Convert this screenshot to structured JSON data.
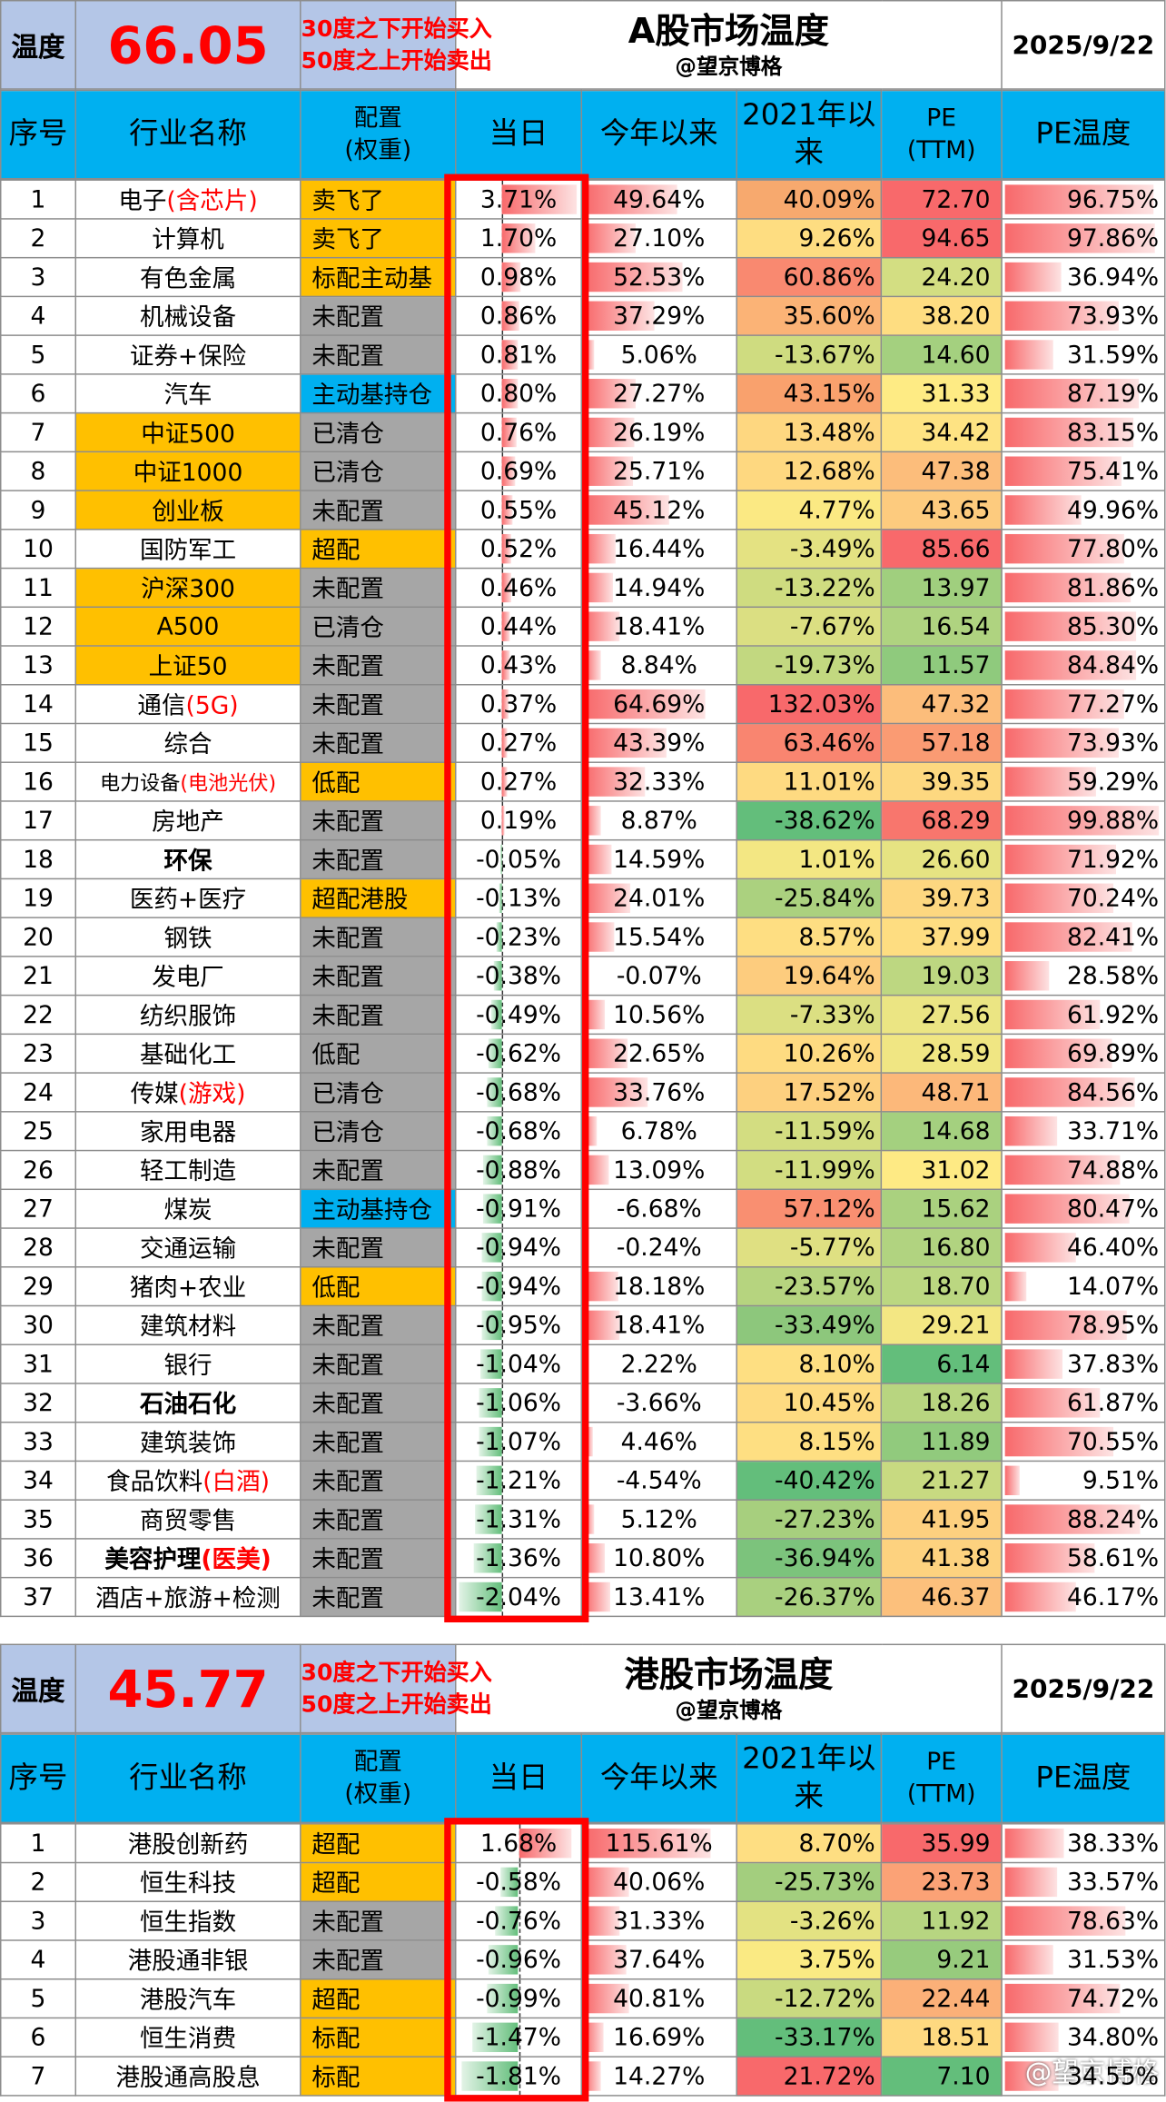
{
  "a_share": {
    "temp_label": "温度",
    "temp_value": "66.05",
    "note_line1": "30度之下开始买入",
    "note_line2": "50度之上开始卖出",
    "title": "A股市场温度",
    "subtitle": "@望京博格",
    "date": "2025/9/22",
    "columns": [
      "序号",
      "行业名称",
      "配置\n(权重)",
      "当日",
      "今年以来",
      "2021年以来",
      "PE\n(TTM)",
      "PE温度"
    ],
    "rows": [
      {
        "no": "1",
        "name": "电子",
        "name_red": "(含芯片)",
        "cfg": "卖飞了",
        "cfg_color": "orange",
        "day": "3.71%",
        "day_val": 3.71,
        "ytd": "49.64%",
        "ytd_val": 49.64,
        "c21": "40.09%",
        "c21_color": "#f7a96e",
        "pe": "72.70",
        "pe_color": "#f8696b",
        "pet": "96.75%",
        "pet_val": 96.75
      },
      {
        "no": "2",
        "name": "计算机",
        "cfg": "卖飞了",
        "cfg_color": "orange",
        "day": "1.70%",
        "day_val": 1.7,
        "ytd": "27.10%",
        "ytd_val": 27.1,
        "c21": "9.26%",
        "c21_color": "#fedd81",
        "pe": "94.65",
        "pe_color": "#f8696b",
        "pet": "97.86%",
        "pet_val": 97.86
      },
      {
        "no": "3",
        "name": "有色金属",
        "cfg": "标配主动基",
        "cfg_color": "orange",
        "day": "0.98%",
        "day_val": 0.98,
        "ytd": "52.53%",
        "ytd_val": 52.53,
        "c21": "60.86%",
        "c21_color": "#f98970",
        "pe": "24.20",
        "pe_color": "#d3de82",
        "pet": "36.94%",
        "pet_val": 36.94
      },
      {
        "no": "4",
        "name": "机械设备",
        "cfg": "未配置",
        "cfg_color": "gray",
        "day": "0.86%",
        "day_val": 0.86,
        "ytd": "37.29%",
        "ytd_val": 37.29,
        "c21": "35.60%",
        "c21_color": "#fbb376",
        "pe": "38.20",
        "pe_color": "#fedd81",
        "pet": "73.93%",
        "pet_val": 73.93
      },
      {
        "no": "5",
        "name": "证券+保险",
        "cfg": "未配置",
        "cfg_color": "gray",
        "day": "0.81%",
        "day_val": 0.81,
        "ytd": "5.06%",
        "ytd_val": 5.06,
        "c21": "-13.67%",
        "c21_color": "#cfdc80",
        "pe": "14.60",
        "pe_color": "#a4d07f",
        "pet": "31.59%",
        "pet_val": 31.59
      },
      {
        "no": "6",
        "name": "汽车",
        "cfg": "主动基持仓",
        "cfg_color": "blue",
        "day": "0.80%",
        "day_val": 0.8,
        "ytd": "27.27%",
        "ytd_val": 27.27,
        "c21": "43.15%",
        "c21_color": "#f9a16d",
        "pe": "31.33",
        "pe_color": "#feeb84",
        "pet": "87.19%",
        "pet_val": 87.19
      },
      {
        "no": "7",
        "name": "中证500",
        "name_hl": true,
        "cfg": "已清仓",
        "cfg_color": "gray",
        "day": "0.76%",
        "day_val": 0.76,
        "ytd": "26.19%",
        "ytd_val": 26.19,
        "c21": "13.48%",
        "c21_color": "#fed780",
        "pe": "34.42",
        "pe_color": "#fee383",
        "pet": "83.15%",
        "pet_val": 83.15
      },
      {
        "no": "8",
        "name": "中证1000",
        "name_hl": true,
        "cfg": "已清仓",
        "cfg_color": "gray",
        "day": "0.69%",
        "day_val": 0.69,
        "ytd": "25.71%",
        "ytd_val": 25.71,
        "c21": "12.68%",
        "c21_color": "#fed880",
        "pe": "47.38",
        "pe_color": "#fcbd7b",
        "pet": "75.41%",
        "pet_val": 75.41
      },
      {
        "no": "9",
        "name": "创业板",
        "name_hl": true,
        "cfg": "未配置",
        "cfg_color": "gray",
        "day": "0.55%",
        "day_val": 0.55,
        "ytd": "45.12%",
        "ytd_val": 45.12,
        "c21": "4.77%",
        "c21_color": "#fbe983",
        "pe": "43.65",
        "pe_color": "#fdcb7e",
        "pet": "49.96%",
        "pet_val": 49.96
      },
      {
        "no": "10",
        "name": "国防军工",
        "cfg": "超配",
        "cfg_color": "orange",
        "day": "0.52%",
        "day_val": 0.52,
        "ytd": "16.44%",
        "ytd_val": 16.44,
        "c21": "-3.49%",
        "c21_color": "#e4e282",
        "pe": "85.66",
        "pe_color": "#f8696b",
        "pet": "77.80%",
        "pet_val": 77.8
      },
      {
        "no": "11",
        "name": "沪深300",
        "name_hl": true,
        "cfg": "未配置",
        "cfg_color": "gray",
        "day": "0.46%",
        "day_val": 0.46,
        "ytd": "14.94%",
        "ytd_val": 14.94,
        "c21": "-13.22%",
        "c21_color": "#cfdc80",
        "pe": "13.97",
        "pe_color": "#a0cf7e",
        "pet": "81.86%",
        "pet_val": 81.86
      },
      {
        "no": "12",
        "name": "A500",
        "name_hl": true,
        "cfg": "已清仓",
        "cfg_color": "gray",
        "day": "0.44%",
        "day_val": 0.44,
        "ytd": "18.41%",
        "ytd_val": 18.41,
        "c21": "-7.67%",
        "c21_color": "#dbdf82",
        "pe": "16.54",
        "pe_color": "#afd380",
        "pet": "85.30%",
        "pet_val": 85.3
      },
      {
        "no": "13",
        "name": "上证50",
        "name_hl": true,
        "cfg": "未配置",
        "cfg_color": "gray",
        "day": "0.43%",
        "day_val": 0.43,
        "ytd": "8.84%",
        "ytd_val": 8.84,
        "c21": "-19.73%",
        "c21_color": "#c2d880",
        "pe": "11.57",
        "pe_color": "#8fca7d",
        "pet": "84.84%",
        "pet_val": 84.84
      },
      {
        "no": "14",
        "name": "通信",
        "name_red": "(5G)",
        "cfg": "未配置",
        "cfg_color": "gray",
        "day": "0.37%",
        "day_val": 0.37,
        "ytd": "64.69%",
        "ytd_val": 64.69,
        "c21": "132.03%",
        "c21_color": "#f8696b",
        "pe": "47.32",
        "pe_color": "#fcbd7b",
        "pet": "77.27%",
        "pet_val": 77.27
      },
      {
        "no": "15",
        "name": "综合",
        "cfg": "未配置",
        "cfg_color": "gray",
        "day": "0.27%",
        "day_val": 0.27,
        "ytd": "43.39%",
        "ytd_val": 43.39,
        "c21": "63.46%",
        "c21_color": "#f98570",
        "pe": "57.18",
        "pe_color": "#fa9b73",
        "pet": "73.93%",
        "pet_val": 73.93
      },
      {
        "no": "16",
        "name": "电力设备",
        "name_red": "(电池光伏)",
        "name_small": true,
        "cfg": "低配",
        "cfg_color": "orange",
        "day": "0.27%",
        "day_val": 0.27,
        "ytd": "32.33%",
        "ytd_val": 32.33,
        "c21": "11.01%",
        "c21_color": "#feda81",
        "pe": "39.35",
        "pe_color": "#fdd880",
        "pet": "59.29%",
        "pet_val": 59.29
      },
      {
        "no": "17",
        "name": "房地产",
        "cfg": "未配置",
        "cfg_color": "gray",
        "day": "0.19%",
        "day_val": 0.19,
        "ytd": "8.87%",
        "ytd_val": 8.87,
        "c21": "-38.62%",
        "c21_color": "#63be7b",
        "pe": "68.29",
        "pe_color": "#f8766d",
        "pet": "99.88%",
        "pet_val": 99.88
      },
      {
        "no": "18",
        "name": "环保",
        "name_bold": true,
        "cfg": "未配置",
        "cfg_color": "gray",
        "day": "-0.05%",
        "day_val": -0.05,
        "ytd": "14.59%",
        "ytd_val": 14.59,
        "c21": "1.01%",
        "c21_color": "#f3e783",
        "pe": "26.60",
        "pe_color": "#e6e382",
        "pet": "71.92%",
        "pet_val": 71.92
      },
      {
        "no": "19",
        "name": "医药+医疗",
        "cfg": "超配港股",
        "cfg_color": "orange",
        "day": "-0.13%",
        "day_val": -0.13,
        "ytd": "24.01%",
        "ytd_val": 24.01,
        "c21": "-25.84%",
        "c21_color": "#abd17f",
        "pe": "39.73",
        "pe_color": "#fdd780",
        "pet": "70.24%",
        "pet_val": 70.24
      },
      {
        "no": "20",
        "name": "钢铁",
        "cfg": "未配置",
        "cfg_color": "gray",
        "day": "-0.23%",
        "day_val": -0.23,
        "ytd": "15.54%",
        "ytd_val": 15.54,
        "c21": "8.57%",
        "c21_color": "#fede82",
        "pe": "37.99",
        "pe_color": "#fedd81",
        "pet": "82.41%",
        "pet_val": 82.41
      },
      {
        "no": "21",
        "name": "发电厂",
        "cfg": "未配置",
        "cfg_color": "gray",
        "day": "-0.38%",
        "day_val": -0.38,
        "ytd": "-0.07%",
        "ytd_val": -0.07,
        "c21": "19.64%",
        "c21_color": "#fdcc7e",
        "pe": "19.03",
        "pe_color": "#bdd781",
        "pet": "28.58%",
        "pet_val": 28.58
      },
      {
        "no": "22",
        "name": "纺织服饰",
        "cfg": "未配置",
        "cfg_color": "gray",
        "day": "-0.49%",
        "day_val": -0.49,
        "ytd": "10.56%",
        "ytd_val": 10.56,
        "c21": "-7.33%",
        "c21_color": "#dbdf82",
        "pe": "27.56",
        "pe_color": "#ebe583",
        "pet": "61.92%",
        "pet_val": 61.92
      },
      {
        "no": "23",
        "name": "基础化工",
        "cfg": "低配",
        "cfg_color": "gray",
        "day": "-0.62%",
        "day_val": -0.62,
        "ytd": "22.65%",
        "ytd_val": 22.65,
        "c21": "10.26%",
        "c21_color": "#fedb81",
        "pe": "28.59",
        "pe_color": "#f0e683",
        "pet": "69.89%",
        "pet_val": 69.89
      },
      {
        "no": "24",
        "name": "传媒",
        "name_red": "(游戏)",
        "cfg": "已清仓",
        "cfg_color": "gray",
        "day": "-0.68%",
        "day_val": -0.68,
        "ytd": "33.76%",
        "ytd_val": 33.76,
        "c21": "17.52%",
        "c21_color": "#fdd07f",
        "pe": "48.71",
        "pe_color": "#fcb87a",
        "pet": "84.56%",
        "pet_val": 84.56
      },
      {
        "no": "25",
        "name": "家用电器",
        "cfg": "已清仓",
        "cfg_color": "gray",
        "day": "-0.68%",
        "day_val": -0.68,
        "ytd": "6.78%",
        "ytd_val": 6.78,
        "c21": "-11.59%",
        "c21_color": "#d3dd81",
        "pe": "14.68",
        "pe_color": "#a4d07f",
        "pet": "33.71%",
        "pet_val": 33.71
      },
      {
        "no": "26",
        "name": "轻工制造",
        "cfg": "未配置",
        "cfg_color": "gray",
        "day": "-0.88%",
        "day_val": -0.88,
        "ytd": "13.09%",
        "ytd_val": 13.09,
        "c21": "-11.99%",
        "c21_color": "#d2dd81",
        "pe": "31.02",
        "pe_color": "#feea84",
        "pet": "74.88%",
        "pet_val": 74.88
      },
      {
        "no": "27",
        "name": "煤炭",
        "cfg": "主动基持仓",
        "cfg_color": "blue",
        "day": "-0.91%",
        "day_val": -0.91,
        "ytd": "-6.68%",
        "ytd_val": -6.68,
        "c21": "57.12%",
        "c21_color": "#f98f71",
        "pe": "15.62",
        "pe_color": "#aad17f",
        "pet": "80.47%",
        "pet_val": 80.47
      },
      {
        "no": "28",
        "name": "交通运输",
        "cfg": "未配置",
        "cfg_color": "gray",
        "day": "-0.94%",
        "day_val": -0.94,
        "ytd": "-0.24%",
        "ytd_val": -0.24,
        "c21": "-5.77%",
        "c21_color": "#dfe082",
        "pe": "16.80",
        "pe_color": "#b1d380",
        "pet": "46.40%",
        "pet_val": 46.4
      },
      {
        "no": "29",
        "name": "猪肉+农业",
        "cfg": "低配",
        "cfg_color": "orange",
        "day": "-0.94%",
        "day_val": -0.94,
        "ytd": "18.18%",
        "ytd_val": 18.18,
        "c21": "-23.57%",
        "c21_color": "#b6d47f",
        "pe": "18.70",
        "pe_color": "#bbd781",
        "pet": "14.07%",
        "pet_val": 14.07
      },
      {
        "no": "30",
        "name": "建筑材料",
        "cfg": "未配置",
        "cfg_color": "gray",
        "day": "-0.95%",
        "day_val": -0.95,
        "ytd": "18.41%",
        "ytd_val": 18.41,
        "c21": "-33.49%",
        "c21_color": "#8dc77c",
        "pe": "29.21",
        "pe_color": "#f3e783",
        "pet": "78.95%",
        "pet_val": 78.95
      },
      {
        "no": "31",
        "name": "银行",
        "cfg": "未配置",
        "cfg_color": "gray",
        "day": "-1.04%",
        "day_val": -1.04,
        "ytd": "2.22%",
        "ytd_val": 2.22,
        "c21": "8.10%",
        "c21_color": "#fedf82",
        "pe": "6.14",
        "pe_color": "#63be7b",
        "pet": "37.83%",
        "pet_val": 37.83
      },
      {
        "no": "32",
        "name": "石油石化",
        "name_bold": true,
        "cfg": "未配置",
        "cfg_color": "gray",
        "day": "-1.06%",
        "day_val": -1.06,
        "ytd": "-3.66%",
        "ytd_val": -3.66,
        "c21": "10.45%",
        "c21_color": "#fedb81",
        "pe": "18.26",
        "pe_color": "#b8d580",
        "pet": "61.87%",
        "pet_val": 61.87
      },
      {
        "no": "33",
        "name": "建筑装饰",
        "cfg": "未配置",
        "cfg_color": "gray",
        "day": "-1.07%",
        "day_val": -1.07,
        "ytd": "4.46%",
        "ytd_val": 4.46,
        "c21": "8.15%",
        "c21_color": "#fedf82",
        "pe": "11.89",
        "pe_color": "#91ca7d",
        "pet": "70.55%",
        "pet_val": 70.55
      },
      {
        "no": "34",
        "name": "食品饮料",
        "name_red": "(白酒)",
        "cfg": "未配置",
        "cfg_color": "gray",
        "day": "-1.21%",
        "day_val": -1.21,
        "ytd": "-4.54%",
        "ytd_val": -4.54,
        "c21": "-40.42%",
        "c21_color": "#63be7b",
        "pe": "21.27",
        "pe_color": "#c8da81",
        "pet": "9.51%",
        "pet_val": 9.51
      },
      {
        "no": "35",
        "name": "商贸零售",
        "cfg": "未配置",
        "cfg_color": "gray",
        "day": "-1.31%",
        "day_val": -1.31,
        "ytd": "5.12%",
        "ytd_val": 5.12,
        "c21": "-27.23%",
        "c21_color": "#a7cf7e",
        "pe": "41.95",
        "pe_color": "#fdd07f",
        "pet": "88.24%",
        "pet_val": 88.24
      },
      {
        "no": "36",
        "name": "美容护理",
        "name_red": "(医美)",
        "name_bold": true,
        "cfg": "未配置",
        "cfg_color": "gray",
        "day": "-1.36%",
        "day_val": -1.36,
        "ytd": "10.80%",
        "ytd_val": 10.8,
        "c21": "-36.94%",
        "c21_color": "#7cc37c",
        "pe": "41.38",
        "pe_color": "#fdd27f",
        "pet": "58.61%",
        "pet_val": 58.61
      },
      {
        "no": "37",
        "name": "酒店+旅游+检测",
        "cfg": "未配置",
        "cfg_color": "gray",
        "day": "-2.04%",
        "day_val": -2.04,
        "ytd": "13.41%",
        "ytd_val": 13.41,
        "c21": "-26.37%",
        "c21_color": "#a9d07f",
        "pe": "46.37",
        "pe_color": "#fcc07c",
        "pet": "46.17%",
        "pet_val": 46.17
      }
    ]
  },
  "hk_share": {
    "temp_label": "温度",
    "temp_value": "45.77",
    "note_line1": "30度之下开始买入",
    "note_line2": "50度之上开始卖出",
    "title": "港股市场温度",
    "subtitle": "@望京博格",
    "date": "2025/9/22",
    "columns": [
      "序号",
      "行业名称",
      "配置\n(权重)",
      "当日",
      "今年以来",
      "2021年以来",
      "PE\n(TTM)",
      "PE温度"
    ],
    "rows": [
      {
        "no": "1",
        "name": "港股创新药",
        "cfg": "超配",
        "cfg_color": "orange",
        "day": "1.68%",
        "day_val": 1.68,
        "ytd": "115.61%",
        "ytd_val": 115.61,
        "c21": "8.70%",
        "c21_color": "#fede82",
        "pe": "35.99",
        "pe_color": "#f8696b",
        "pet": "38.33%",
        "pet_val": 38.33
      },
      {
        "no": "2",
        "name": "恒生科技",
        "cfg": "超配",
        "cfg_color": "orange",
        "day": "-0.58%",
        "day_val": -0.58,
        "ytd": "40.06%",
        "ytd_val": 40.06,
        "c21": "-25.73%",
        "c21_color": "#a3ce7e",
        "pe": "23.73",
        "pe_color": "#fba276",
        "pet": "33.57%",
        "pet_val": 33.57
      },
      {
        "no": "3",
        "name": "恒生指数",
        "cfg": "未配置",
        "cfg_color": "gray",
        "day": "-0.76%",
        "day_val": -0.76,
        "ytd": "31.33%",
        "ytd_val": 31.33,
        "c21": "-3.26%",
        "c21_color": "#e3e282",
        "pe": "11.92",
        "pe_color": "#b7d581",
        "pet": "78.63%",
        "pet_val": 78.63
      },
      {
        "no": "4",
        "name": "港股通非银",
        "cfg": "未配置",
        "cfg_color": "gray",
        "day": "-0.96%",
        "day_val": -0.96,
        "ytd": "37.64%",
        "ytd_val": 37.64,
        "c21": "3.75%",
        "c21_color": "#faea83",
        "pe": "9.21",
        "pe_color": "#97cb7d",
        "pet": "31.53%",
        "pet_val": 31.53
      },
      {
        "no": "5",
        "name": "港股汽车",
        "cfg": "超配",
        "cfg_color": "orange",
        "day": "-0.99%",
        "day_val": -0.99,
        "ytd": "40.81%",
        "ytd_val": 40.81,
        "c21": "-12.72%",
        "c21_color": "#c9da80",
        "pe": "22.44",
        "pe_color": "#fbb078",
        "pet": "74.72%",
        "pet_val": 74.72
      },
      {
        "no": "6",
        "name": "恒生消费",
        "cfg": "标配",
        "cfg_color": "orange",
        "day": "-1.47%",
        "day_val": -1.47,
        "ytd": "16.69%",
        "ytd_val": 16.69,
        "c21": "-33.17%",
        "c21_color": "#63be7b",
        "pe": "18.51",
        "pe_color": "#fed980",
        "pet": "34.80%",
        "pet_val": 34.8
      },
      {
        "no": "7",
        "name": "港股通高股息",
        "cfg": "标配",
        "cfg_color": "orange",
        "day": "-1.81%",
        "day_val": -1.81,
        "ytd": "14.27%",
        "ytd_val": 14.27,
        "c21": "21.72%",
        "c21_color": "#f8696b",
        "pe": "7.10",
        "pe_color": "#63be7b",
        "pet": "34.55%",
        "pet_val": 34.55
      }
    ],
    "watermark": "@望京博格"
  },
  "colors": {
    "header_blue": "#00b0f0",
    "temp_bg": "#b4c6e7",
    "accent_red": "#ff0000",
    "config_orange": "#ffc000",
    "config_gray": "#a6a6a6"
  }
}
